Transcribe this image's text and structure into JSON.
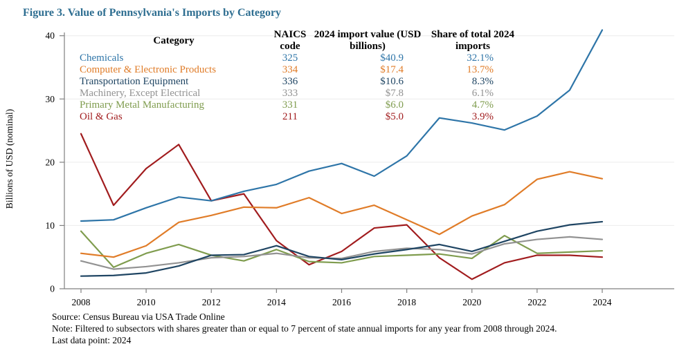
{
  "title": "Figure 3. Value of Pennsylvania's Imports by Category",
  "colors": {
    "title": "#2e6e91",
    "axis": "#7f7f7f",
    "gridline": "#ebebeb",
    "tick_text": "#000000"
  },
  "legend_table": {
    "headers": {
      "category": "Category",
      "naics": "NAICS code",
      "value": "2024 import value (USD billions)",
      "share": "Share of total 2024 imports"
    },
    "rows": [
      {
        "category": "Chemicals",
        "naics": "325",
        "value": "$40.9",
        "share": "32.1%"
      },
      {
        "category": "Computer & Electronic Products",
        "naics": "334",
        "value": "$17.4",
        "share": "13.7%"
      },
      {
        "category": "Transportation Equipment",
        "naics": "336",
        "value": "$10.6",
        "share": "8.3%"
      },
      {
        "category": "Machinery, Except Electrical",
        "naics": "333",
        "value": "$7.8",
        "share": "6.1%"
      },
      {
        "category": "Primary Metal Manufacturing",
        "naics": "331",
        "value": "$6.0",
        "share": "4.7%"
      },
      {
        "category": "Oil & Gas",
        "naics": "211",
        "value": "$5.0",
        "share": "3.9%"
      }
    ]
  },
  "footer": {
    "source": "Source: Census Bureau via USA Trade Online",
    "note": "Note: Filtered to subsectors with shares greater than or equal to 7 percent of state annual imports for any year from 2008 through 2024.",
    "last_data_point": "Last data point: 2024"
  },
  "chart_data": {
    "type": "line",
    "title": "Figure 3. Value of Pennsylvania's Imports by Category",
    "xlabel": "",
    "ylabel": "Billions of USD (nominal)",
    "ylim": [
      0,
      40
    ],
    "y_ticks": [
      0,
      10,
      20,
      30,
      40
    ],
    "x_ticks": [
      2008,
      2010,
      2012,
      2014,
      2016,
      2018,
      2020,
      2022,
      2024
    ],
    "grid": "horizontal",
    "legend_position": "table overlay, upper left",
    "x": [
      2008,
      2009,
      2010,
      2011,
      2012,
      2013,
      2014,
      2015,
      2016,
      2017,
      2018,
      2019,
      2020,
      2021,
      2022,
      2023,
      2024
    ],
    "series": [
      {
        "name": "Chemicals",
        "naics": "325",
        "color": "#2e75a8",
        "values": [
          10.7,
          10.9,
          12.8,
          14.5,
          13.9,
          15.4,
          16.5,
          18.6,
          19.8,
          17.8,
          21.0,
          27.0,
          26.2,
          25.1,
          27.3,
          31.4,
          40.9
        ]
      },
      {
        "name": "Computer & Electronic Products",
        "naics": "334",
        "color": "#e07c28",
        "values": [
          5.6,
          5.0,
          6.8,
          10.5,
          11.6,
          12.9,
          12.8,
          14.4,
          11.9,
          13.2,
          10.9,
          8.6,
          11.5,
          13.3,
          17.3,
          18.5,
          17.4
        ]
      },
      {
        "name": "Transportation Equipment",
        "naics": "336",
        "color": "#1f4563",
        "values": [
          2.0,
          2.1,
          2.5,
          3.6,
          5.3,
          5.4,
          6.8,
          5.1,
          4.6,
          5.5,
          6.2,
          7.0,
          5.9,
          7.5,
          9.1,
          10.1,
          10.6
        ]
      },
      {
        "name": "Machinery, Except Electrical",
        "naics": "333",
        "color": "#929292",
        "values": [
          4.4,
          3.1,
          3.5,
          4.1,
          4.9,
          5.1,
          5.6,
          4.9,
          4.8,
          5.9,
          6.4,
          6.2,
          5.5,
          7.1,
          7.8,
          8.2,
          7.8
        ]
      },
      {
        "name": "Primary Metal Manufacturing",
        "naics": "331",
        "color": "#7f9c4e",
        "values": [
          9.1,
          3.4,
          5.6,
          7.0,
          5.3,
          4.4,
          6.2,
          4.3,
          4.1,
          5.1,
          5.3,
          5.5,
          4.8,
          8.4,
          5.6,
          5.8,
          6.0
        ]
      },
      {
        "name": "Oil & Gas",
        "naics": "211",
        "color": "#a11c1e",
        "values": [
          24.5,
          13.2,
          19.0,
          22.8,
          13.9,
          15.0,
          7.6,
          3.8,
          5.9,
          9.6,
          10.1,
          4.9,
          1.5,
          4.1,
          5.3,
          5.3,
          5.0
        ]
      }
    ]
  }
}
